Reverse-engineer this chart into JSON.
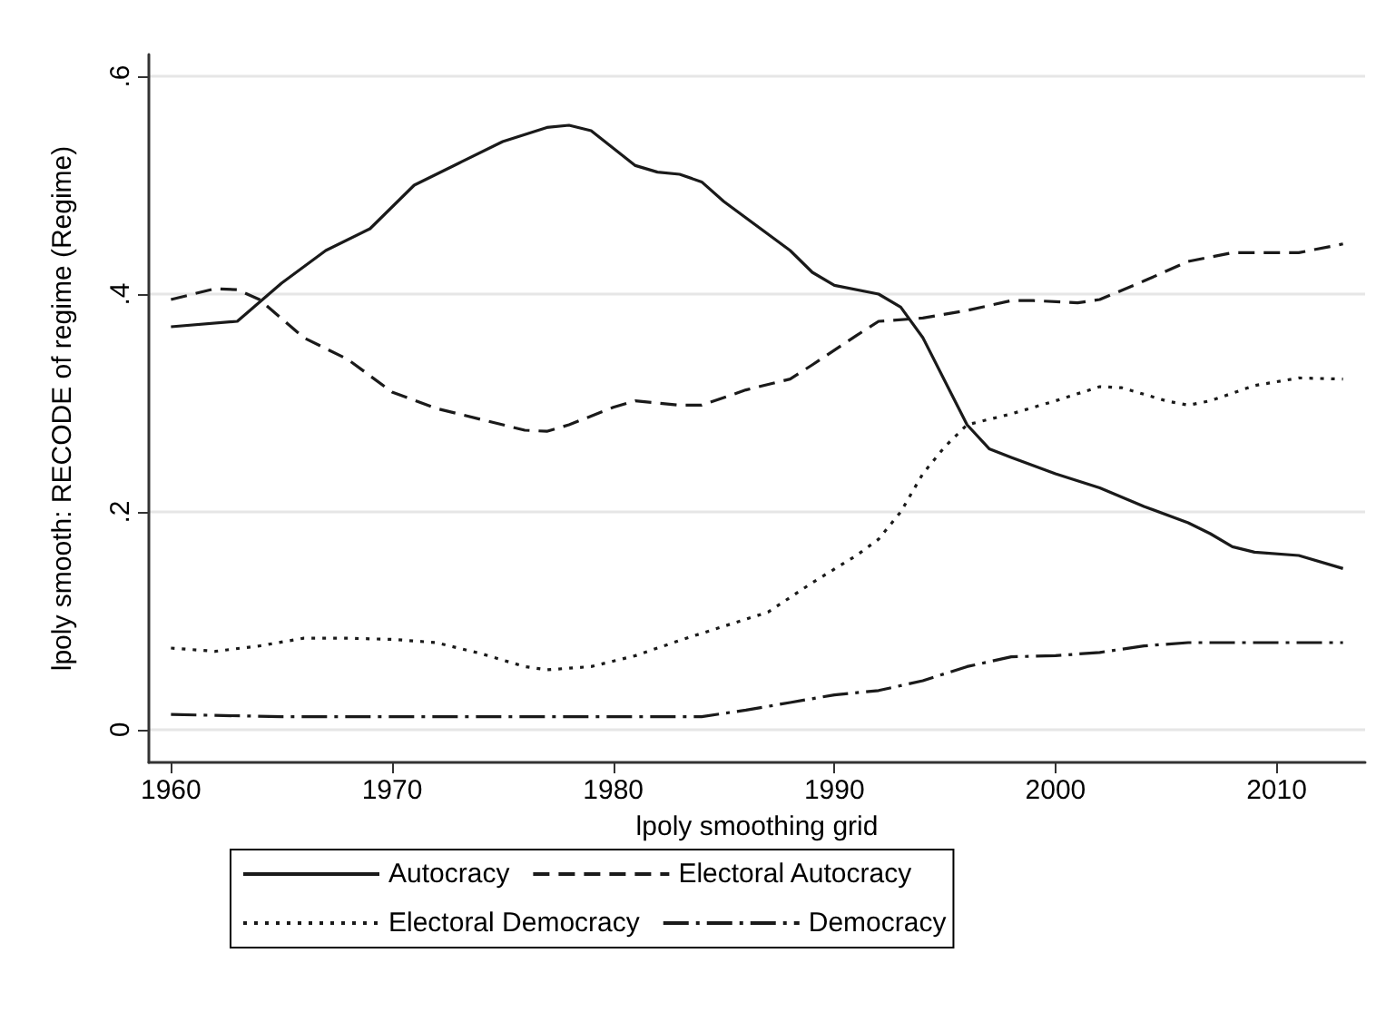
{
  "chart_data": {
    "type": "line",
    "xlabel": "lpoly smoothing grid",
    "ylabel": "lpoly smooth: RECODE of regime (Regime)",
    "xlim": [
      1959,
      2014
    ],
    "xticks": [
      1960,
      1970,
      1980,
      1990,
      2000,
      2010
    ],
    "ylim": [
      -0.03,
      0.62
    ],
    "yticks": [
      {
        "value": 0,
        "label": "0"
      },
      {
        "value": 0.2,
        "label": ".2"
      },
      {
        "value": 0.4,
        "label": ".4"
      },
      {
        "value": 0.6,
        "label": ".6"
      }
    ],
    "grid": "y",
    "legend": "bottom",
    "marker": "none",
    "series": [
      {
        "name": "Autocracy",
        "color": "#1a1a1a",
        "line_style": "solid",
        "x": [
          1960,
          1963,
          1965,
          1967,
          1969,
          1971,
          1973,
          1975,
          1977,
          1978,
          1979,
          1981,
          1982,
          1983,
          1984,
          1985,
          1987,
          1988,
          1989,
          1990,
          1992,
          1993,
          1994,
          1995,
          1996,
          1997,
          1998,
          2000,
          2002,
          2004,
          2006,
          2007,
          2008,
          2009,
          2011,
          2013
        ],
        "values": [
          0.37,
          0.375,
          0.41,
          0.44,
          0.46,
          0.5,
          0.52,
          0.54,
          0.553,
          0.555,
          0.55,
          0.518,
          0.512,
          0.51,
          0.503,
          0.485,
          0.455,
          0.44,
          0.42,
          0.408,
          0.4,
          0.388,
          0.36,
          0.32,
          0.28,
          0.258,
          0.25,
          0.235,
          0.222,
          0.205,
          0.19,
          0.18,
          0.168,
          0.163,
          0.16,
          0.148
        ]
      },
      {
        "name": "Electoral Autocracy",
        "color": "#1a1a1a",
        "line_style": "dashed",
        "x": [
          1960,
          1962,
          1963,
          1964,
          1966,
          1968,
          1970,
          1972,
          1974,
          1976,
          1977,
          1978,
          1980,
          1981,
          1982,
          1983,
          1984,
          1986,
          1988,
          1989,
          1991,
          1992,
          1994,
          1996,
          1998,
          1999,
          2001,
          2002,
          2004,
          2006,
          2008,
          2009,
          2011,
          2013
        ],
        "values": [
          0.395,
          0.405,
          0.404,
          0.395,
          0.36,
          0.34,
          0.31,
          0.295,
          0.285,
          0.275,
          0.274,
          0.28,
          0.296,
          0.302,
          0.3,
          0.298,
          0.298,
          0.312,
          0.322,
          0.335,
          0.362,
          0.375,
          0.378,
          0.385,
          0.394,
          0.394,
          0.392,
          0.395,
          0.412,
          0.43,
          0.438,
          0.438,
          0.438,
          0.446
        ]
      },
      {
        "name": "Electoral Democracy",
        "color": "#1a1a1a",
        "line_style": "dotted",
        "x": [
          1960,
          1962,
          1964,
          1966,
          1968,
          1970,
          1972,
          1974,
          1976,
          1977,
          1979,
          1981,
          1983,
          1985,
          1987,
          1989,
          1991,
          1992,
          1993,
          1994,
          1995,
          1996,
          1998,
          2000,
          2002,
          2003,
          2005,
          2006,
          2007,
          2009,
          2011,
          2013
        ],
        "values": [
          0.075,
          0.072,
          0.077,
          0.084,
          0.084,
          0.083,
          0.08,
          0.07,
          0.058,
          0.055,
          0.058,
          0.068,
          0.082,
          0.095,
          0.108,
          0.135,
          0.16,
          0.175,
          0.2,
          0.235,
          0.26,
          0.28,
          0.29,
          0.302,
          0.315,
          0.314,
          0.302,
          0.298,
          0.302,
          0.316,
          0.323,
          0.322
        ]
      },
      {
        "name": "Democracy",
        "color": "#1a1a1a",
        "line_style": "dashdot",
        "x": [
          1960,
          1965,
          1970,
          1975,
          1980,
          1984,
          1986,
          1988,
          1990,
          1992,
          1994,
          1996,
          1998,
          2000,
          2002,
          2004,
          2006,
          2010,
          2013
        ],
        "values": [
          0.014,
          0.012,
          0.012,
          0.012,
          0.012,
          0.012,
          0.018,
          0.025,
          0.032,
          0.036,
          0.045,
          0.058,
          0.067,
          0.068,
          0.071,
          0.077,
          0.08,
          0.08,
          0.08
        ]
      }
    ]
  }
}
